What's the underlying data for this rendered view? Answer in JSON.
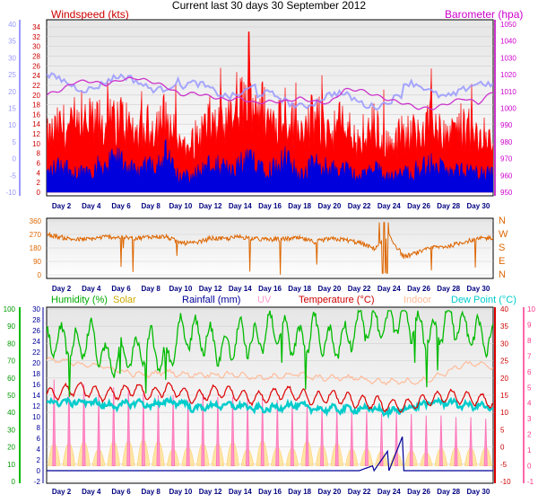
{
  "title": "Current last 30 days 30 September 2012",
  "colors": {
    "wind_gust": "#ff0000",
    "wind_avg": "#0000dd",
    "barometer": "#cc33cc",
    "wind_axis": "#9999ff",
    "direction": "#dd6600",
    "humidity": "#00bb00",
    "solar": "#ccaa00",
    "rainfall": "#000099",
    "uv": "#ff99cc",
    "temperature": "#dd0000",
    "indoor": "#ffbb99",
    "dewpoint": "#00cccc",
    "plot_top": "#e8e8e8",
    "plot_bottom": "#ffffff"
  },
  "chart_data": [
    {
      "type": "area",
      "panel": "wind",
      "title": "Windspeed (kts)",
      "ylabel_left": "Windspeed (kts)",
      "ylabel_right": "Barometer (hpa)",
      "y_left_ticks": [
        "0",
        "2",
        "4",
        "6",
        "8",
        "10",
        "12",
        "14",
        "16",
        "18",
        "20",
        "22",
        "24",
        "26",
        "28",
        "30",
        "32",
        "34"
      ],
      "y_left_range": [
        0,
        34
      ],
      "y_far_left_ticks": [
        "-10",
        "-5",
        "0",
        "5",
        "10",
        "15",
        "20",
        "25",
        "30",
        "35",
        "40"
      ],
      "y_right_ticks": [
        "950",
        "960",
        "970",
        "980",
        "990",
        "1000",
        "1010",
        "1020",
        "1030",
        "1040",
        "1050"
      ],
      "y_right_range": [
        950,
        1050
      ],
      "x_ticks": [
        "Day 2",
        "Day 4",
        "Day 6",
        "Day 8",
        "Day 10",
        "Day 12",
        "Day 14",
        "Day 16",
        "Day 18",
        "Day 20",
        "Day 22",
        "Day 24",
        "Day 26",
        "Day 28",
        "Day 30"
      ],
      "x_range": [
        1,
        31
      ],
      "series": [
        {
          "name": "Windspeed (kts)",
          "kind": "gust",
          "days": [
            1,
            2,
            3,
            4,
            5,
            6,
            7,
            8,
            9,
            10,
            11,
            12,
            13,
            14,
            15,
            16,
            17,
            18,
            19,
            20,
            21,
            22,
            23,
            24,
            25,
            26,
            27,
            28,
            29,
            30,
            31
          ],
          "values": [
            12,
            15,
            14,
            16,
            15,
            17,
            13,
            15,
            17,
            10,
            12,
            16,
            14,
            20,
            22,
            16,
            19,
            13,
            17,
            14,
            16,
            10,
            15,
            11,
            13,
            14,
            16,
            13,
            15,
            12,
            13
          ]
        },
        {
          "name": "Average",
          "kind": "avg",
          "days": [
            1,
            2,
            3,
            4,
            5,
            6,
            7,
            8,
            9,
            10,
            11,
            12,
            13,
            14,
            15,
            16,
            17,
            18,
            19,
            20,
            21,
            22,
            23,
            24,
            25,
            26,
            27,
            28,
            29,
            30,
            31
          ],
          "values": [
            4,
            6,
            4,
            5,
            6,
            7,
            4,
            6,
            8,
            3,
            4,
            6,
            5,
            6,
            7,
            5,
            7,
            4,
            6,
            5,
            5,
            3,
            5,
            3,
            4,
            5,
            6,
            4,
            5,
            4,
            4
          ]
        },
        {
          "name": "Barometer (hpa)",
          "kind": "baro",
          "days": [
            1,
            2,
            3,
            4,
            5,
            6,
            7,
            8,
            9,
            10,
            11,
            12,
            13,
            14,
            15,
            16,
            17,
            18,
            19,
            20,
            21,
            22,
            23,
            24,
            25,
            26,
            27,
            28,
            29,
            30,
            31
          ],
          "values": [
            1008,
            1011,
            1016,
            1016,
            1014,
            1017,
            1018,
            1016,
            1013,
            1008,
            1009,
            1007,
            1005,
            1006,
            1003,
            1004,
            1004,
            1006,
            1004,
            1003,
            1011,
            1011,
            1008,
            1005,
            1003,
            1000,
            1000,
            1003,
            1006,
            1003,
            1010
          ]
        }
      ]
    },
    {
      "type": "line",
      "panel": "direction",
      "y_left_ticks": [
        "0",
        "90",
        "180",
        "270",
        "360"
      ],
      "y_range": [
        0,
        360
      ],
      "y_right_ticks": [
        "N",
        "W",
        "S",
        "E",
        "N"
      ],
      "series": [
        {
          "name": "Wind direction",
          "days": [
            1,
            2,
            3,
            4,
            5,
            6,
            7,
            8,
            9,
            10,
            11,
            12,
            13,
            14,
            15,
            16,
            17,
            18,
            19,
            20,
            21,
            22,
            23,
            24,
            25,
            26,
            27,
            28,
            29,
            30,
            31
          ],
          "values": [
            270,
            250,
            235,
            240,
            255,
            250,
            245,
            255,
            255,
            215,
            210,
            245,
            240,
            255,
            240,
            235,
            240,
            245,
            220,
            240,
            235,
            215,
            175,
            260,
            120,
            150,
            185,
            190,
            220,
            240,
            250
          ]
        }
      ]
    },
    {
      "type": "line",
      "panel": "weather",
      "y_humidity_ticks": [
        "0",
        "10",
        "20",
        "30",
        "40",
        "50",
        "60",
        "70",
        "80",
        "90",
        "100"
      ],
      "y_rainfall_ticks": [
        "-2",
        "0",
        "2",
        "4",
        "6",
        "8",
        "10",
        "12",
        "14",
        "16",
        "18",
        "20",
        "22",
        "24",
        "26",
        "28",
        "30"
      ],
      "y_temperature_ticks": [
        "-10",
        "-5",
        "0",
        "5",
        "10",
        "15",
        "20",
        "25",
        "30",
        "35",
        "40"
      ],
      "y_uv_ticks": [
        "-1",
        "0",
        "1",
        "2",
        "3",
        "4",
        "5",
        "6",
        "7",
        "8",
        "9",
        "10"
      ],
      "series": [
        {
          "name": "Humidity (%)",
          "axis": "humidity",
          "days": [
            1,
            2,
            3,
            4,
            5,
            6,
            7,
            8,
            9,
            10,
            11,
            12,
            13,
            14,
            15,
            16,
            17,
            18,
            19,
            20,
            21,
            22,
            23,
            24,
            25,
            26,
            27,
            28,
            29,
            30,
            31
          ],
          "values": [
            80,
            82,
            78,
            85,
            70,
            72,
            75,
            80,
            68,
            88,
            85,
            82,
            75,
            85,
            80,
            90,
            85,
            80,
            88,
            80,
            82,
            92,
            90,
            92,
            95,
            88,
            85,
            95,
            88,
            85,
            82
          ]
        },
        {
          "name": "Temperature (°C)",
          "axis": "temperature",
          "days": [
            1,
            2,
            3,
            4,
            5,
            6,
            7,
            8,
            9,
            10,
            11,
            12,
            13,
            14,
            15,
            16,
            17,
            18,
            19,
            20,
            21,
            22,
            23,
            24,
            25,
            26,
            27,
            28,
            29,
            30,
            31
          ],
          "values": [
            15,
            16,
            17,
            16,
            15,
            16,
            17,
            15,
            17,
            16,
            14,
            16,
            16,
            15,
            14,
            15,
            16,
            15,
            14,
            15,
            14,
            13,
            13,
            12,
            12,
            13,
            14,
            15,
            14,
            14,
            13
          ]
        },
        {
          "name": "Dew Point (°C)",
          "axis": "temperature",
          "days": [
            1,
            2,
            3,
            4,
            5,
            6,
            7,
            8,
            9,
            10,
            11,
            12,
            13,
            14,
            15,
            16,
            17,
            18,
            19,
            20,
            21,
            22,
            23,
            24,
            25,
            26,
            27,
            28,
            29,
            30,
            31
          ],
          "values": [
            13,
            13,
            13,
            13,
            12,
            12,
            13,
            12,
            13,
            13,
            11,
            12,
            12,
            12,
            11,
            11,
            12,
            12,
            11,
            11,
            11,
            11,
            11,
            10,
            11,
            12,
            13,
            13,
            12,
            12,
            11
          ]
        },
        {
          "name": "Indoor",
          "axis": "temperature",
          "days": [
            1,
            2,
            3,
            4,
            5,
            6,
            7,
            8,
            9,
            10,
            11,
            12,
            13,
            14,
            15,
            16,
            17,
            18,
            19,
            20,
            21,
            22,
            23,
            24,
            25,
            26,
            27,
            28,
            29,
            30,
            31
          ],
          "values": [
            25,
            25,
            24,
            24,
            23,
            22,
            21,
            21,
            22,
            21,
            21,
            21,
            21,
            21,
            20,
            20,
            21,
            21,
            20,
            20,
            20,
            20,
            19,
            19,
            19,
            19,
            20,
            22,
            24,
            24,
            23
          ]
        },
        {
          "name": "Rainfall (mm)",
          "axis": "rainfall",
          "days": [
            1,
            2,
            3,
            4,
            5,
            6,
            7,
            8,
            9,
            10,
            11,
            12,
            13,
            14,
            15,
            16,
            17,
            18,
            19,
            20,
            21,
            22,
            23,
            24,
            25,
            26,
            27,
            28,
            29,
            30,
            31
          ],
          "values": [
            0,
            0,
            0,
            0,
            0,
            0,
            0,
            0,
            0,
            0,
            0,
            0,
            0,
            0,
            0,
            0,
            0,
            0,
            0,
            0,
            0,
            1,
            4,
            7,
            0,
            0,
            0,
            0,
            0,
            0,
            0
          ]
        },
        {
          "name": "UV",
          "axis": "uv",
          "days": [
            1,
            2,
            3,
            4,
            5,
            6,
            7,
            8,
            9,
            10,
            11,
            12,
            13,
            14,
            15,
            16,
            17,
            18,
            19,
            20,
            21,
            22,
            23,
            24,
            25,
            26,
            27,
            28,
            29,
            30,
            31
          ],
          "values": [
            5.5,
            5.5,
            5.2,
            5.2,
            4.5,
            5.0,
            5.0,
            4.7,
            4.5,
            4.5,
            4.2,
            4.6,
            4.4,
            4.4,
            4.3,
            4.3,
            4.2,
            4.0,
            3.9,
            3.8,
            3.7,
            3.5,
            3.5,
            3.3,
            3.4,
            3.3,
            3.2,
            3.2,
            3.1,
            3.1,
            3.0
          ]
        },
        {
          "name": "Solar",
          "axis": "uv",
          "days": [
            1,
            2,
            3,
            4,
            5,
            6,
            7,
            8,
            9,
            10,
            11,
            12,
            13,
            14,
            15,
            16,
            17,
            18,
            19,
            20,
            21,
            22,
            23,
            24,
            25,
            26,
            27,
            28,
            29,
            30,
            31
          ],
          "values": [
            3.5,
            3.0,
            3.2,
            2.5,
            2.0,
            3.0,
            2.5,
            3.0,
            2.8,
            2.0,
            2.5,
            2.8,
            2.2,
            2.6,
            2.4,
            2.5,
            2.6,
            2.2,
            2.5,
            2.3,
            2.1,
            1.8,
            1.5,
            1.5,
            1.7,
            1.6,
            1.4,
            1.8,
            2.2,
            2.0,
            1.8
          ]
        }
      ]
    }
  ],
  "labels": {
    "humidity": "Humidity  (%)",
    "solar": "Solar",
    "rainfall": "Rainfall (mm)",
    "uv": "UV",
    "temperature": "Temperature (°C)",
    "indoor": "Indoor",
    "dewpoint": "Dew Point (°C)"
  }
}
